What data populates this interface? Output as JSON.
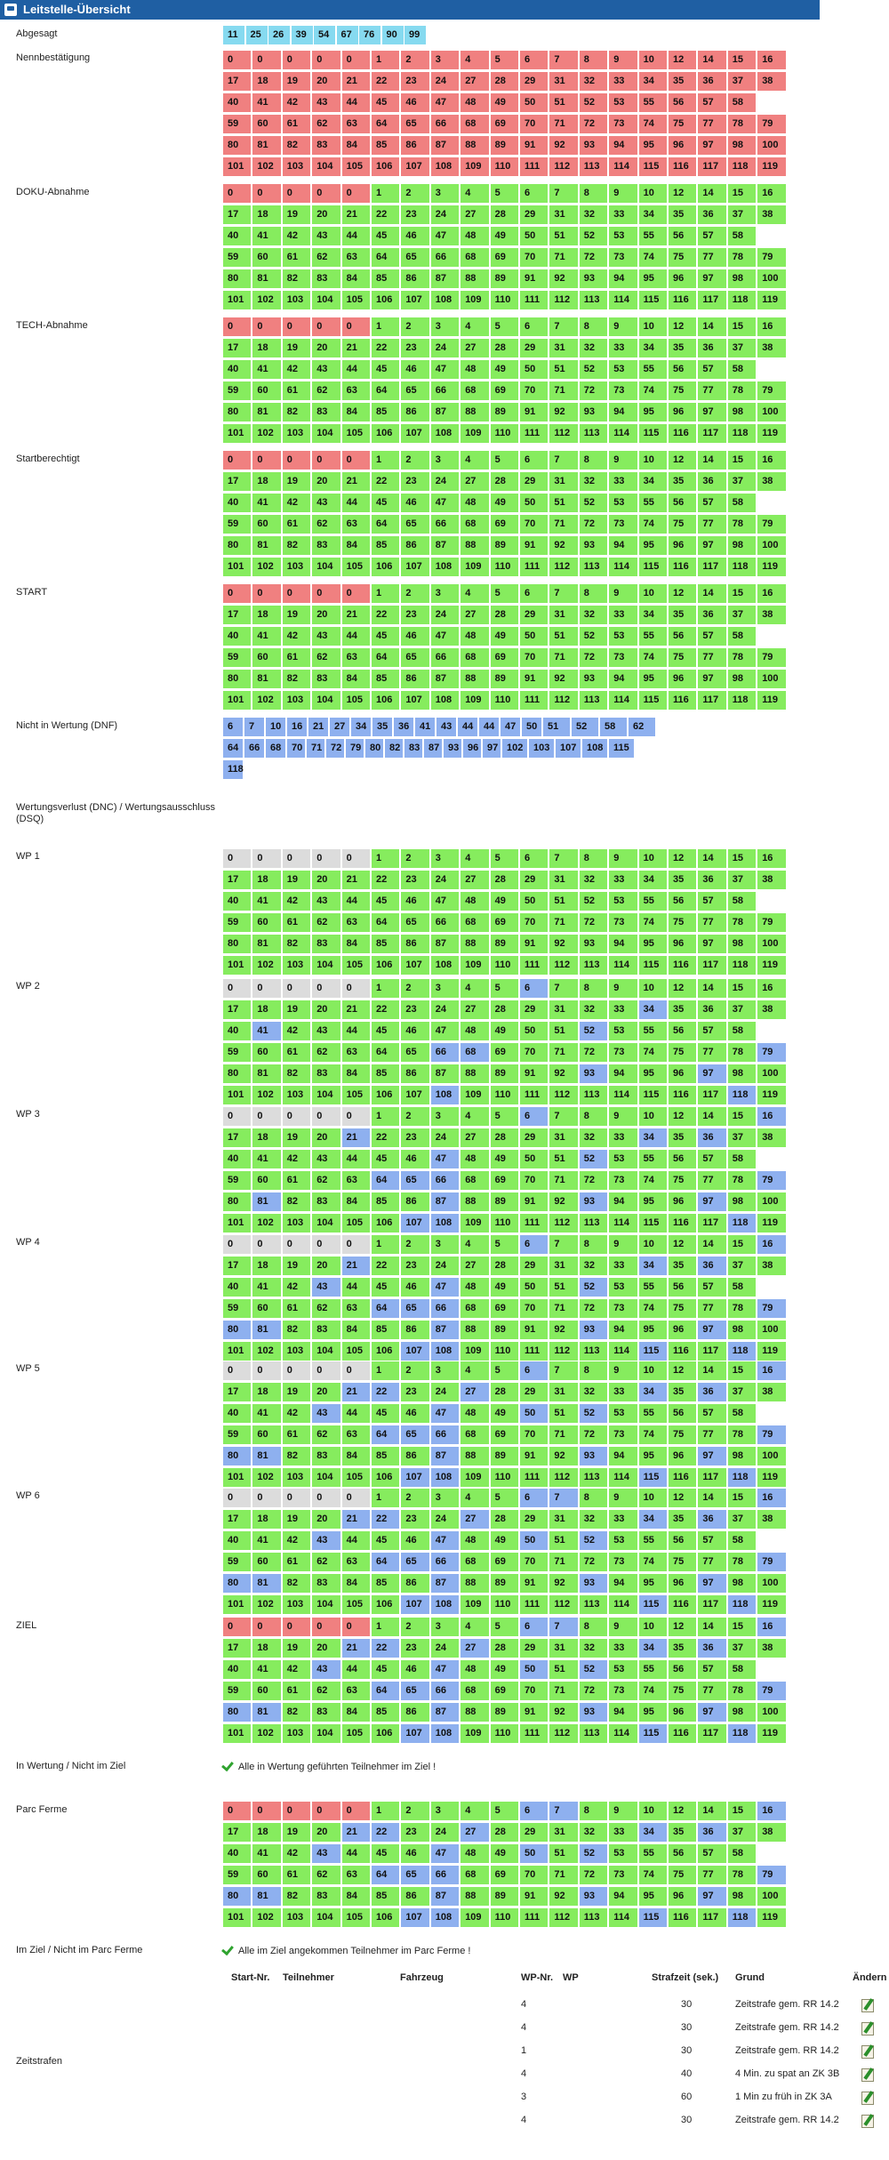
{
  "header": {
    "title": "Leitstelle-Übersicht"
  },
  "labels": {
    "abgesagt": "Abgesagt",
    "nennbestaetigung": "Nennbestätigung",
    "doku": "DOKU-Abnahme",
    "tech": "TECH-Abnahme",
    "startberechtigt": "Startberechtigt",
    "start": "START",
    "dnf": "Nicht in Wertung (DNF)",
    "dnc": "Wertungsverlust (DNC) / Wertungsausschluss (DSQ)",
    "wp1": "WP 1",
    "wp2": "WP 2",
    "wp3": "WP 3",
    "wp4": "WP 4",
    "wp5": "WP 5",
    "wp6": "WP 6",
    "ziel": "ZIEL",
    "in_wertung": "In Wertung / Nicht im Ziel",
    "in_wertung_msg": "Alle in Wertung geführten Teilnehmer im Ziel !",
    "parc_ferme": "Parc Ferme",
    "im_ziel": "Im Ziel / Nicht im Parc Ferme",
    "im_ziel_msg": "Alle im Ziel angekommen Teilnehmer im Parc Ferme !",
    "zeitstrafen": "Zeitstrafen"
  },
  "colors": {
    "red": "#f08080",
    "green": "#86ec5e",
    "blue": "#8eb0ef",
    "grey": "#dcdcdc",
    "cyan": "#86daf0",
    "header": "#1f5fa3"
  },
  "grid_numbers": [
    [
      "0",
      "0",
      "0",
      "0",
      "0",
      "1",
      "2",
      "3",
      "4",
      "5",
      "6",
      "7",
      "8",
      "9",
      "10",
      "12",
      "14",
      "15",
      "16"
    ],
    [
      "17",
      "18",
      "19",
      "20",
      "21",
      "22",
      "23",
      "24",
      "27",
      "28",
      "29",
      "31",
      "32",
      "33",
      "34",
      "35",
      "36",
      "37",
      "38"
    ],
    [
      "40",
      "41",
      "42",
      "43",
      "44",
      "45",
      "46",
      "47",
      "48",
      "49",
      "50",
      "51",
      "52",
      "53",
      "55",
      "56",
      "57",
      "58"
    ],
    [
      "59",
      "60",
      "61",
      "62",
      "63",
      "64",
      "65",
      "66",
      "68",
      "69",
      "70",
      "71",
      "72",
      "73",
      "74",
      "75",
      "77",
      "78",
      "79"
    ],
    [
      "80",
      "81",
      "82",
      "83",
      "84",
      "85",
      "86",
      "87",
      "88",
      "89",
      "91",
      "92",
      "93",
      "94",
      "95",
      "96",
      "97",
      "98",
      "100"
    ],
    [
      "101",
      "102",
      "103",
      "104",
      "105",
      "106",
      "107",
      "108",
      "109",
      "110",
      "111",
      "112",
      "113",
      "114",
      "115",
      "116",
      "117",
      "118",
      "119"
    ]
  ],
  "abgesagt": [
    "11",
    "25",
    "26",
    "39",
    "54",
    "67",
    "76",
    "90",
    "99"
  ],
  "dnf": [
    [
      "6",
      "7",
      "10",
      "16",
      "21",
      "27",
      "34",
      "35",
      "36",
      "41",
      "43",
      "44",
      "44",
      "47",
      "50",
      "51",
      "52",
      "58",
      "62"
    ],
    [
      "64",
      "66",
      "68",
      "70",
      "71",
      "72",
      "79",
      "80",
      "82",
      "83",
      "87",
      "93",
      "96",
      "97",
      "102",
      "103",
      "107",
      "108",
      "115"
    ],
    [
      "118"
    ]
  ],
  "zeitstrafen": {
    "headers": {
      "start_nr": "Start-Nr.",
      "teilnehmer": "Teilnehmer",
      "fahrzeug": "Fahrzeug",
      "wp_nr": "WP-Nr.",
      "wp": "WP",
      "strafzeit": "Strafzeit (sek.)",
      "grund": "Grund",
      "aendern": "Ändern"
    },
    "rows": [
      {
        "wp_nr": "4",
        "strafzeit": "30",
        "grund": "Zeitstrafe gem. RR 14.2"
      },
      {
        "wp_nr": "4",
        "strafzeit": "30",
        "grund": "Zeitstrafe gem. RR 14.2"
      },
      {
        "wp_nr": "1",
        "strafzeit": "30",
        "grund": "Zeitstrafe gem. RR 14.2"
      },
      {
        "wp_nr": "4",
        "strafzeit": "40",
        "grund": "4 Min. zu spat an ZK 3B"
      },
      {
        "wp_nr": "3",
        "strafzeit": "60",
        "grund": "1 Min zu früh in ZK 3A"
      },
      {
        "wp_nr": "4",
        "strafzeit": "30",
        "grund": "Zeitstrafe gem. RR 14.2"
      }
    ]
  }
}
